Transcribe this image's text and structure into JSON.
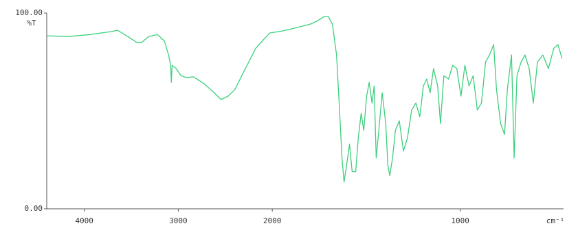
{
  "chart_data": {
    "type": "line",
    "ylabel": "%T",
    "xlabel": "cm⁻¹",
    "xlim": [
      4400,
      450
    ],
    "xscale_break": 2000,
    "xscale_break_stretch": 2,
    "xticks": [
      4000,
      3000,
      2000,
      1000
    ],
    "ylim": [
      0,
      100
    ],
    "yticks": [
      {
        "value": 0,
        "label": "0.00"
      },
      {
        "value": 100,
        "label": "100.00"
      }
    ],
    "grid": false,
    "series": [
      {
        "name": "%T",
        "color": "#3ccf7c",
        "x": [
          4400,
          4162,
          3941,
          3721,
          3647,
          3537,
          3441,
          3390,
          3316,
          3221,
          3147,
          3103,
          3081,
          3074,
          3066,
          3022,
          2971,
          2912,
          2838,
          2728,
          2618,
          2544,
          2471,
          2397,
          2324,
          2176,
          2029,
          1942,
          1869,
          1796,
          1760,
          1724,
          1702,
          1680,
          1658,
          1644,
          1629,
          1618,
          1604,
          1589,
          1575,
          1556,
          1542,
          1527,
          1513,
          1498,
          1484,
          1469,
          1458,
          1447,
          1433,
          1415,
          1396,
          1385,
          1375,
          1360,
          1345,
          1324,
          1302,
          1280,
          1258,
          1236,
          1215,
          1196,
          1178,
          1160,
          1142,
          1120,
          1105,
          1087,
          1062,
          1040,
          1018,
          996,
          975,
          953,
          931,
          909,
          887,
          865,
          844,
          822,
          807,
          785,
          764,
          749,
          727,
          713,
          698,
          676,
          655,
          633,
          611,
          589,
          560,
          531,
          502,
          480,
          458
        ],
        "values": [
          88.4,
          88,
          89,
          90.5,
          91.2,
          88,
          85,
          85,
          88,
          89,
          85.6,
          78.6,
          73.3,
          64.6,
          73.3,
          71.6,
          68,
          67,
          67.4,
          64,
          59.3,
          55.8,
          57.5,
          61,
          68,
          82,
          89.8,
          90.9,
          92.6,
          94.4,
          96,
          98.2,
          98.2,
          94.4,
          78.6,
          54,
          26,
          13.7,
          22.5,
          33,
          19,
          19,
          36.5,
          48.8,
          40,
          57.5,
          64.6,
          54,
          62.8,
          26,
          40,
          59.3,
          43.5,
          22.5,
          17,
          26,
          40,
          45,
          29.5,
          36.5,
          50.5,
          54,
          47,
          62.8,
          66.3,
          59.3,
          71.6,
          62.8,
          43.5,
          68,
          66.3,
          73.3,
          71.6,
          57.5,
          73.3,
          62.8,
          68,
          50.5,
          54,
          75,
          78.6,
          83.9,
          61,
          43.5,
          38,
          61,
          78.6,
          26,
          68,
          75,
          78.6,
          71.6,
          54,
          75,
          78.6,
          71.6,
          82,
          83.9,
          76.8
        ]
      }
    ]
  }
}
